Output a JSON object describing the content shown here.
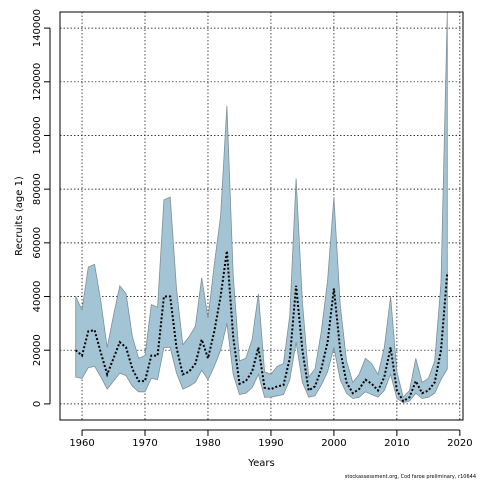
{
  "chart_data": {
    "type": "line",
    "xlabel": "Years",
    "ylabel": "Recruits (age 1)",
    "footnote": "stockassessment.org, Cod faroe preliminary, r10644",
    "xlim": [
      1956.5,
      2020.5
    ],
    "ylim": [
      -6000,
      146000
    ],
    "x_ticks": [
      1960,
      1970,
      1980,
      1990,
      2000,
      2010,
      2020
    ],
    "y_ticks": [
      0,
      20000,
      40000,
      60000,
      80000,
      100000,
      120000,
      140000
    ],
    "grid": true,
    "colors": {
      "band": "#a2c4d4",
      "band_edge": "#7f8f99",
      "line": "#000000"
    },
    "x": [
      1959,
      1960,
      1961,
      1962,
      1963,
      1964,
      1965,
      1966,
      1967,
      1968,
      1969,
      1970,
      1971,
      1972,
      1973,
      1974,
      1975,
      1976,
      1977,
      1978,
      1979,
      1980,
      1981,
      1982,
      1983,
      1984,
      1985,
      1986,
      1987,
      1988,
      1989,
      1990,
      1991,
      1992,
      1993,
      1994,
      1995,
      1996,
      1997,
      1998,
      1999,
      2000,
      2001,
      2002,
      2003,
      2004,
      2005,
      2006,
      2007,
      2008,
      2009,
      2010,
      2011,
      2012,
      2013,
      2014,
      2015,
      2016,
      2017,
      2018
    ],
    "series": [
      {
        "name": "estimate",
        "values": [
          20000,
          18000,
          27000,
          27500,
          19000,
          11000,
          17000,
          23000,
          21000,
          13000,
          8500,
          8500,
          18000,
          18000,
          40000,
          40000,
          21000,
          11000,
          12000,
          15000,
          24000,
          17000,
          27000,
          40000,
          57000,
          25000,
          7500,
          8500,
          12000,
          21000,
          6000,
          5500,
          6500,
          7000,
          17000,
          44000,
          20000,
          5000,
          6500,
          13000,
          23000,
          43000,
          20000,
          8000,
          4000,
          5500,
          9000,
          7500,
          5000,
          10000,
          21000,
          5000,
          1000,
          2500,
          8500,
          4000,
          5000,
          8000,
          20000,
          49000
        ]
      },
      {
        "name": "lower",
        "values": [
          10000,
          9500,
          13500,
          14000,
          10000,
          5500,
          8500,
          11500,
          10500,
          6500,
          4500,
          4500,
          9500,
          9000,
          21000,
          21000,
          11500,
          5500,
          6500,
          8000,
          12500,
          9000,
          14000,
          20000,
          30000,
          11000,
          3500,
          4000,
          6000,
          11000,
          2500,
          2500,
          3000,
          3500,
          9000,
          23000,
          8000,
          2500,
          3000,
          7000,
          12000,
          21000,
          9000,
          4000,
          2000,
          2500,
          4500,
          3500,
          2500,
          5000,
          11000,
          2000,
          500,
          1000,
          4000,
          2000,
          2500,
          4000,
          9000,
          13000
        ]
      },
      {
        "name": "upper",
        "values": [
          40000,
          35000,
          51000,
          52000,
          38000,
          21000,
          33000,
          44000,
          41000,
          25000,
          17000,
          18000,
          37000,
          36000,
          76000,
          77000,
          43000,
          22000,
          25000,
          29000,
          47000,
          32000,
          52000,
          70000,
          111000,
          48000,
          16000,
          17000,
          24000,
          41000,
          12000,
          11000,
          14000,
          15000,
          33000,
          84000,
          38000,
          10000,
          13000,
          27000,
          46000,
          77000,
          37000,
          16000,
          8000,
          11000,
          17000,
          15000,
          11000,
          21000,
          40000,
          12000,
          2500,
          5000,
          17000,
          8000,
          9500,
          16000,
          45000,
          146000
        ]
      }
    ]
  }
}
